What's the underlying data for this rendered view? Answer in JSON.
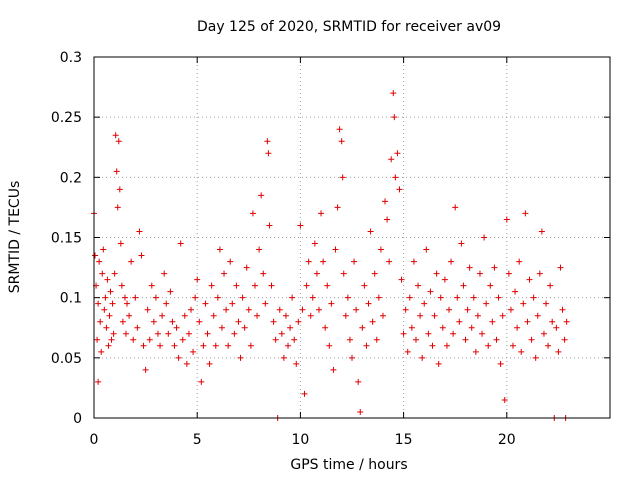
{
  "chart_data": {
    "type": "scatter",
    "title": "Day 125 of 2020, SRMTID for receiver av09",
    "xlabel": "GPS time / hours",
    "ylabel": "SRMTID / TECUs",
    "xlim": [
      0,
      25
    ],
    "ylim": [
      0,
      0.3
    ],
    "xticks": [
      0,
      5,
      10,
      15,
      20
    ],
    "xtick_labels": [
      "0",
      "5",
      "10",
      "15",
      "20"
    ],
    "yticks": [
      0,
      0.05,
      0.1,
      0.15,
      0.2,
      0.25,
      0.3
    ],
    "ytick_labels": [
      "0",
      "0.05",
      "0.1",
      "0.15",
      "0.2",
      "0.25",
      "0.3"
    ],
    "grid": true,
    "marker": "+",
    "color": "#e00000",
    "series": [
      {
        "name": "SRMTID",
        "points": [
          [
            0.0,
            0.17
          ],
          [
            0.05,
            0.135
          ],
          [
            0.1,
            0.11
          ],
          [
            0.15,
            0.065
          ],
          [
            0.2,
            0.095
          ],
          [
            0.25,
            0.13
          ],
          [
            0.3,
            0.08
          ],
          [
            0.35,
            0.055
          ],
          [
            0.4,
            0.12
          ],
          [
            0.45,
            0.14
          ],
          [
            0.5,
            0.09
          ],
          [
            0.55,
            0.1
          ],
          [
            0.6,
            0.075
          ],
          [
            0.65,
            0.115
          ],
          [
            0.2,
            0.03
          ],
          [
            0.7,
            0.06
          ],
          [
            0.75,
            0.085
          ],
          [
            0.8,
            0.105
          ],
          [
            0.85,
            0.065
          ],
          [
            0.9,
            0.095
          ],
          [
            0.95,
            0.07
          ],
          [
            1.0,
            0.12
          ],
          [
            1.05,
            0.235
          ],
          [
            1.1,
            0.205
          ],
          [
            1.15,
            0.175
          ],
          [
            1.2,
            0.23
          ],
          [
            1.25,
            0.19
          ],
          [
            1.3,
            0.145
          ],
          [
            1.35,
            0.11
          ],
          [
            1.4,
            0.08
          ],
          [
            1.5,
            0.1
          ],
          [
            1.55,
            0.07
          ],
          [
            1.6,
            0.095
          ],
          [
            1.7,
            0.085
          ],
          [
            1.8,
            0.13
          ],
          [
            1.9,
            0.065
          ],
          [
            2.0,
            0.1
          ],
          [
            2.1,
            0.075
          ],
          [
            2.2,
            0.155
          ],
          [
            2.3,
            0.135
          ],
          [
            2.4,
            0.06
          ],
          [
            2.5,
            0.04
          ],
          [
            2.6,
            0.09
          ],
          [
            2.7,
            0.065
          ],
          [
            2.8,
            0.11
          ],
          [
            2.9,
            0.08
          ],
          [
            3.0,
            0.1
          ],
          [
            3.1,
            0.07
          ],
          [
            3.2,
            0.06
          ],
          [
            3.3,
            0.085
          ],
          [
            3.4,
            0.12
          ],
          [
            3.5,
            0.095
          ],
          [
            3.6,
            0.07
          ],
          [
            3.7,
            0.105
          ],
          [
            3.8,
            0.08
          ],
          [
            3.9,
            0.06
          ],
          [
            4.0,
            0.075
          ],
          [
            4.1,
            0.05
          ],
          [
            4.2,
            0.145
          ],
          [
            4.3,
            0.065
          ],
          [
            4.4,
            0.085
          ],
          [
            4.5,
            0.045
          ],
          [
            4.6,
            0.07
          ],
          [
            4.7,
            0.09
          ],
          [
            4.8,
            0.055
          ],
          [
            4.9,
            0.1
          ],
          [
            5.0,
            0.115
          ],
          [
            5.1,
            0.08
          ],
          [
            5.2,
            0.03
          ],
          [
            5.3,
            0.06
          ],
          [
            5.4,
            0.095
          ],
          [
            5.5,
            0.07
          ],
          [
            5.6,
            0.045
          ],
          [
            5.7,
            0.11
          ],
          [
            5.8,
            0.085
          ],
          [
            5.9,
            0.06
          ],
          [
            6.0,
            0.1
          ],
          [
            6.1,
            0.14
          ],
          [
            6.2,
            0.075
          ],
          [
            6.3,
            0.12
          ],
          [
            6.4,
            0.09
          ],
          [
            6.5,
            0.06
          ],
          [
            6.6,
            0.13
          ],
          [
            6.7,
            0.095
          ],
          [
            6.8,
            0.07
          ],
          [
            6.9,
            0.11
          ],
          [
            7.0,
            0.08
          ],
          [
            7.1,
            0.05
          ],
          [
            7.2,
            0.1
          ],
          [
            7.3,
            0.075
          ],
          [
            7.4,
            0.125
          ],
          [
            7.5,
            0.09
          ],
          [
            7.6,
            0.06
          ],
          [
            7.7,
            0.17
          ],
          [
            7.8,
            0.11
          ],
          [
            7.9,
            0.085
          ],
          [
            8.0,
            0.14
          ],
          [
            8.1,
            0.185
          ],
          [
            8.2,
            0.12
          ],
          [
            8.3,
            0.095
          ],
          [
            8.4,
            0.23
          ],
          [
            8.45,
            0.22
          ],
          [
            8.5,
            0.16
          ],
          [
            8.6,
            0.11
          ],
          [
            8.7,
            0.08
          ],
          [
            8.8,
            0.065
          ],
          [
            8.9,
            0.0
          ],
          [
            9.0,
            0.09
          ],
          [
            9.1,
            0.07
          ],
          [
            9.2,
            0.05
          ],
          [
            9.3,
            0.085
          ],
          [
            9.4,
            0.06
          ],
          [
            9.5,
            0.075
          ],
          [
            9.6,
            0.1
          ],
          [
            9.7,
            0.065
          ],
          [
            9.8,
            0.045
          ],
          [
            9.9,
            0.08
          ],
          [
            10.0,
            0.16
          ],
          [
            10.1,
            0.09
          ],
          [
            10.2,
            0.02
          ],
          [
            10.3,
            0.11
          ],
          [
            10.4,
            0.13
          ],
          [
            10.5,
            0.085
          ],
          [
            10.6,
            0.1
          ],
          [
            10.7,
            0.145
          ],
          [
            10.8,
            0.12
          ],
          [
            10.9,
            0.09
          ],
          [
            11.0,
            0.17
          ],
          [
            11.1,
            0.13
          ],
          [
            11.2,
            0.075
          ],
          [
            11.3,
            0.11
          ],
          [
            11.4,
            0.06
          ],
          [
            11.5,
            0.095
          ],
          [
            11.6,
            0.04
          ],
          [
            11.7,
            0.14
          ],
          [
            11.8,
            0.175
          ],
          [
            11.9,
            0.24
          ],
          [
            12.0,
            0.23
          ],
          [
            12.05,
            0.2
          ],
          [
            12.1,
            0.12
          ],
          [
            12.2,
            0.085
          ],
          [
            12.3,
            0.1
          ],
          [
            12.4,
            0.065
          ],
          [
            12.5,
            0.05
          ],
          [
            12.6,
            0.13
          ],
          [
            12.7,
            0.09
          ],
          [
            12.8,
            0.03
          ],
          [
            12.9,
            0.005
          ],
          [
            13.0,
            0.075
          ],
          [
            13.1,
            0.11
          ],
          [
            13.2,
            0.06
          ],
          [
            13.3,
            0.095
          ],
          [
            13.4,
            0.155
          ],
          [
            13.5,
            0.08
          ],
          [
            13.6,
            0.12
          ],
          [
            13.7,
            0.065
          ],
          [
            13.8,
            0.1
          ],
          [
            13.9,
            0.14
          ],
          [
            14.0,
            0.085
          ],
          [
            14.1,
            0.18
          ],
          [
            14.2,
            0.165
          ],
          [
            14.3,
            0.13
          ],
          [
            14.4,
            0.215
          ],
          [
            14.5,
            0.27
          ],
          [
            14.55,
            0.25
          ],
          [
            14.6,
            0.2
          ],
          [
            14.7,
            0.22
          ],
          [
            14.8,
            0.19
          ],
          [
            14.9,
            0.115
          ],
          [
            15.0,
            0.07
          ],
          [
            15.1,
            0.09
          ],
          [
            15.2,
            0.055
          ],
          [
            15.3,
            0.1
          ],
          [
            15.4,
            0.075
          ],
          [
            15.5,
            0.13
          ],
          [
            15.6,
            0.065
          ],
          [
            15.7,
            0.11
          ],
          [
            15.8,
            0.085
          ],
          [
            15.9,
            0.05
          ],
          [
            16.0,
            0.095
          ],
          [
            16.1,
            0.14
          ],
          [
            16.2,
            0.07
          ],
          [
            16.3,
            0.105
          ],
          [
            16.4,
            0.06
          ],
          [
            16.5,
            0.085
          ],
          [
            16.6,
            0.12
          ],
          [
            16.7,
            0.045
          ],
          [
            16.8,
            0.1
          ],
          [
            16.9,
            0.075
          ],
          [
            17.0,
            0.115
          ],
          [
            17.1,
            0.06
          ],
          [
            17.2,
            0.09
          ],
          [
            17.3,
            0.13
          ],
          [
            17.4,
            0.07
          ],
          [
            17.5,
            0.175
          ],
          [
            17.6,
            0.1
          ],
          [
            17.7,
            0.08
          ],
          [
            17.8,
            0.145
          ],
          [
            17.9,
            0.11
          ],
          [
            18.0,
            0.065
          ],
          [
            18.1,
            0.09
          ],
          [
            18.2,
            0.125
          ],
          [
            18.3,
            0.075
          ],
          [
            18.4,
            0.1
          ],
          [
            18.5,
            0.055
          ],
          [
            18.6,
            0.085
          ],
          [
            18.7,
            0.12
          ],
          [
            18.8,
            0.07
          ],
          [
            18.9,
            0.15
          ],
          [
            19.0,
            0.095
          ],
          [
            19.1,
            0.06
          ],
          [
            19.2,
            0.11
          ],
          [
            19.3,
            0.08
          ],
          [
            19.4,
            0.125
          ],
          [
            19.5,
            0.065
          ],
          [
            19.6,
            0.1
          ],
          [
            19.7,
            0.045
          ],
          [
            19.8,
            0.085
          ],
          [
            19.9,
            0.015
          ],
          [
            20.0,
            0.165
          ],
          [
            20.1,
            0.12
          ],
          [
            20.2,
            0.09
          ],
          [
            20.3,
            0.06
          ],
          [
            20.4,
            0.105
          ],
          [
            20.5,
            0.075
          ],
          [
            20.6,
            0.13
          ],
          [
            20.7,
            0.055
          ],
          [
            20.8,
            0.095
          ],
          [
            20.9,
            0.17
          ],
          [
            21.0,
            0.08
          ],
          [
            21.1,
            0.115
          ],
          [
            21.2,
            0.065
          ],
          [
            21.3,
            0.1
          ],
          [
            21.4,
            0.05
          ],
          [
            21.5,
            0.085
          ],
          [
            21.6,
            0.12
          ],
          [
            21.7,
            0.155
          ],
          [
            21.8,
            0.07
          ],
          [
            21.9,
            0.095
          ],
          [
            22.0,
            0.06
          ],
          [
            22.1,
            0.11
          ],
          [
            22.2,
            0.08
          ],
          [
            22.3,
            0.0
          ],
          [
            22.4,
            0.075
          ],
          [
            22.5,
            0.055
          ],
          [
            22.6,
            0.125
          ],
          [
            22.7,
            0.09
          ],
          [
            22.8,
            0.065
          ],
          [
            22.85,
            0.0
          ],
          [
            22.9,
            0.08
          ]
        ]
      }
    ]
  }
}
